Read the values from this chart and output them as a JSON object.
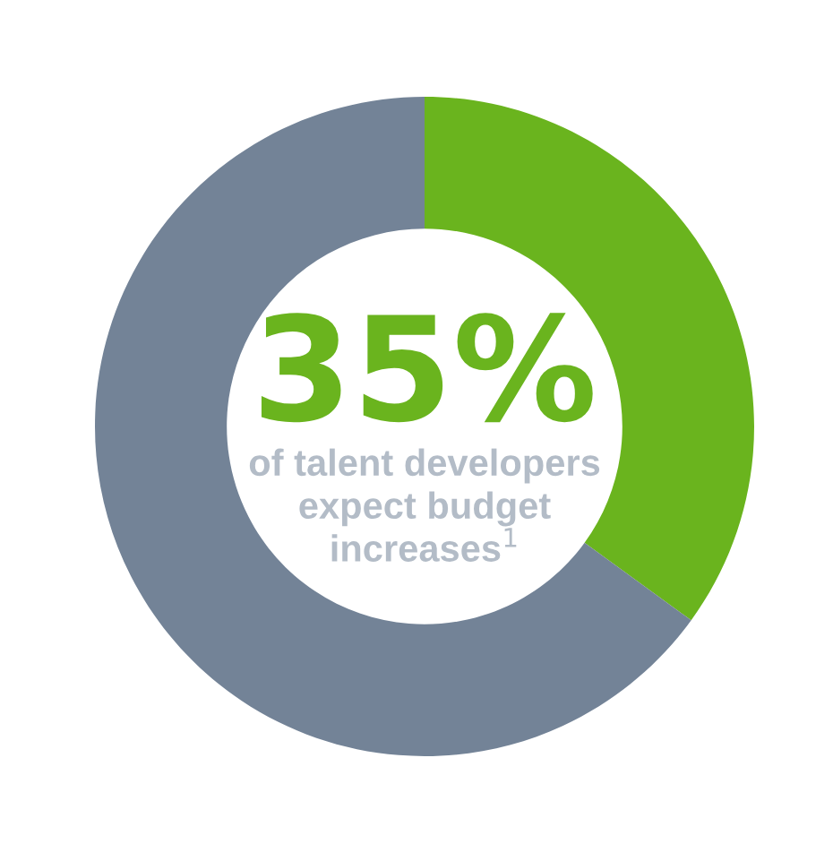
{
  "chart_data": {
    "type": "donut",
    "categories": [
      null,
      null
    ],
    "values": [
      35,
      65
    ],
    "colors": [
      "#6ab41e",
      "#738397"
    ],
    "annotations": [
      "35%",
      "of talent developers\nexpect budget\nincreases$^{1}$"
    ],
    "legend": false
  }
}
